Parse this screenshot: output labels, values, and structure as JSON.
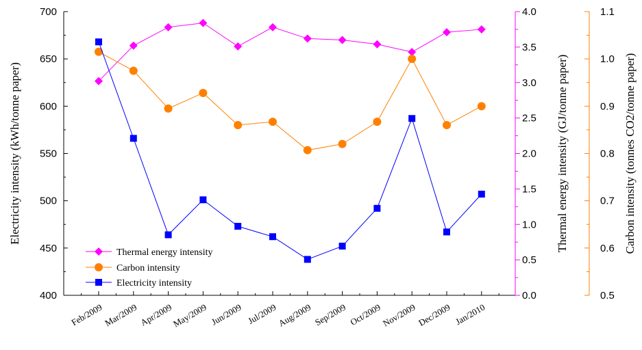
{
  "chart_data": {
    "type": "line",
    "categories": [
      "Feb/2009",
      "Mar/2009",
      "Apr/2009",
      "May/2009",
      "Jun/2009",
      "Jul/2009",
      "Aug/2009",
      "Sep/2009",
      "Oct/2009",
      "Nov/2009",
      "Dec/2009",
      "Jan/2010"
    ],
    "series": [
      {
        "name": "Thermal energy intensity",
        "axis": "right-inner",
        "color": "#ff00ff",
        "marker": "diamond",
        "values": [
          3.02,
          3.52,
          3.78,
          3.84,
          3.51,
          3.78,
          3.62,
          3.6,
          3.54,
          3.43,
          3.71,
          3.75
        ]
      },
      {
        "name": "Carbon intensity",
        "axis": "right-outer",
        "color": "#ff8000",
        "marker": "circle",
        "values": [
          1.015,
          0.975,
          0.895,
          0.928,
          0.86,
          0.867,
          0.807,
          0.82,
          0.867,
          1.0,
          0.86,
          0.9
        ]
      },
      {
        "name": "Electricity intensity",
        "axis": "left",
        "color": "#0000ff",
        "marker": "square",
        "values": [
          668,
          566,
          464,
          501,
          473,
          462,
          438,
          452,
          492,
          587,
          467,
          507
        ]
      }
    ],
    "axes": {
      "left": {
        "label": "Electricity intensity (kWh/tonne paper)",
        "ylim": [
          400,
          700
        ],
        "ticks": [
          "400",
          "450",
          "500",
          "550",
          "600",
          "650",
          "700"
        ],
        "color": "#000000"
      },
      "right_inner": {
        "label": "Thermal energy intensity (GJ/tonne paper)",
        "ylim": [
          0.0,
          4.0
        ],
        "ticks": [
          "0.0",
          "0.5",
          "1.0",
          "1.5",
          "2.0",
          "2.5",
          "3.0",
          "3.5",
          "4.0"
        ],
        "color": "#ff00ff"
      },
      "right_outer": {
        "label": "Carbon intensity (tonnes CO2/tonne paper)",
        "ylim": [
          0.5,
          1.1
        ],
        "ticks": [
          "0.5",
          "0.6",
          "0.7",
          "0.8",
          "0.9",
          "1.0",
          "1.1"
        ],
        "color": "#ff8000"
      }
    },
    "legend": {
      "placement": "bottom-left",
      "entries": [
        "Thermal energy intensity",
        "Carbon intensity",
        "Electricity intensity"
      ]
    },
    "grid": false
  }
}
